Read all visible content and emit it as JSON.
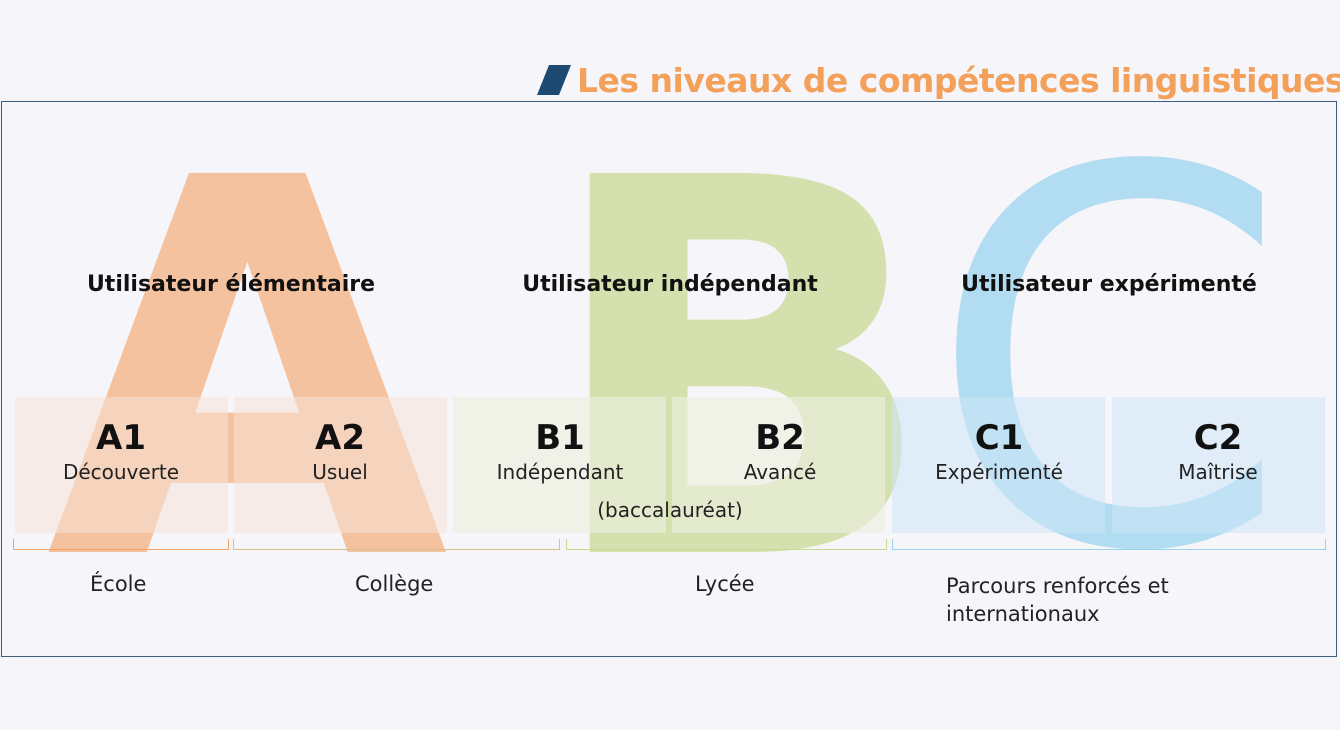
{
  "title": "Les niveaux de compétences linguistiques",
  "colors": {
    "title": "#f2a05a",
    "slash": "#1d4a72",
    "frame": "#3d5f7d",
    "a_accent": "#f3a367",
    "b_accent": "#c7d88f",
    "c_accent": "#98d2ee"
  },
  "big_letters": {
    "a": "A",
    "b": "B",
    "c": "C"
  },
  "categories": [
    {
      "label": "Utilisateur élémentaire"
    },
    {
      "label": "Utilisateur indépendant"
    },
    {
      "label": "Utilisateur expérimenté"
    }
  ],
  "levels": [
    {
      "code": "A1",
      "name": "Découverte"
    },
    {
      "code": "A2",
      "name": "Usuel"
    },
    {
      "code": "B1",
      "name": "Indépendant",
      "extra": "(baccalauréat)"
    },
    {
      "code": "B2",
      "name": "Avancé"
    },
    {
      "code": "C1",
      "name": "Expérimenté"
    },
    {
      "code": "C2",
      "name": "Maîtrise"
    }
  ],
  "stages": [
    {
      "label": "École"
    },
    {
      "label": "Collège"
    },
    {
      "label": "Lycée"
    },
    {
      "label": "Parcours renforcés et internationaux"
    }
  ]
}
